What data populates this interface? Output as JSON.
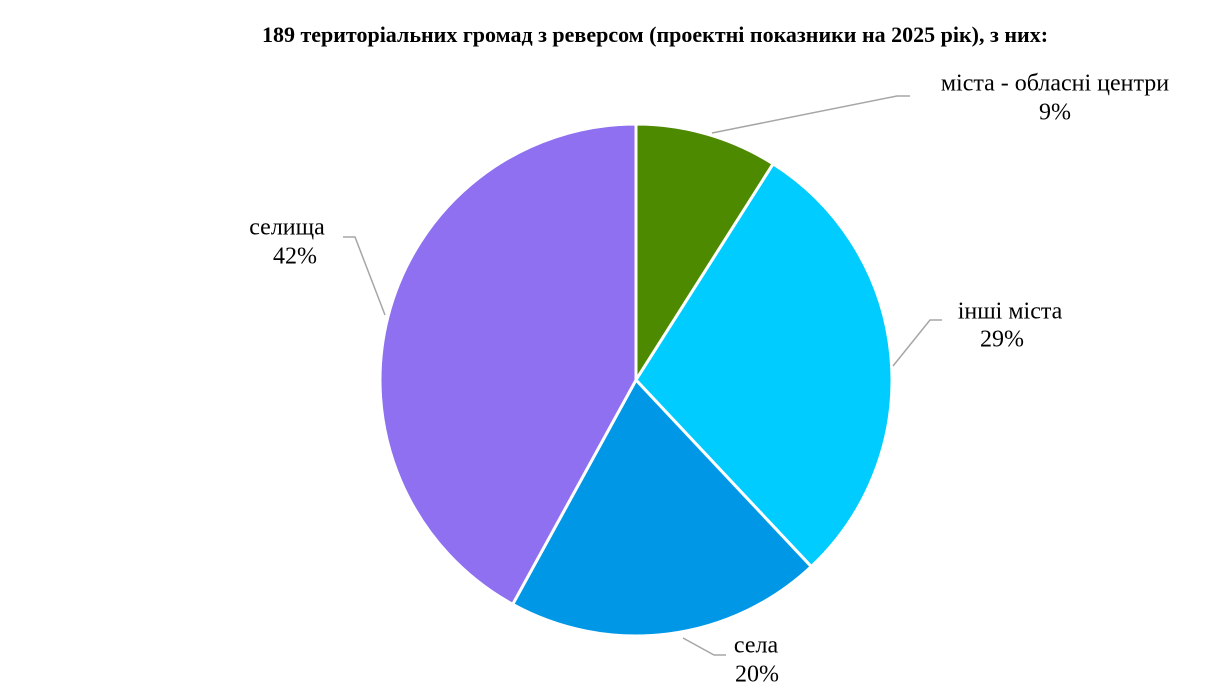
{
  "chart_data": {
    "type": "pie",
    "title": "189 територіальних громад з реверсом (проектні показники на 2025 рік), з них:",
    "categories": [
      "міста - обласні центри",
      "інші міста",
      "села",
      "селища"
    ],
    "values": [
      9,
      29,
      20,
      42
    ],
    "value_labels": [
      "9%",
      "29%",
      "20%",
      "42%"
    ],
    "colors": [
      "#4e8a00",
      "#00ccff",
      "#0097e6",
      "#8f70f0"
    ]
  }
}
